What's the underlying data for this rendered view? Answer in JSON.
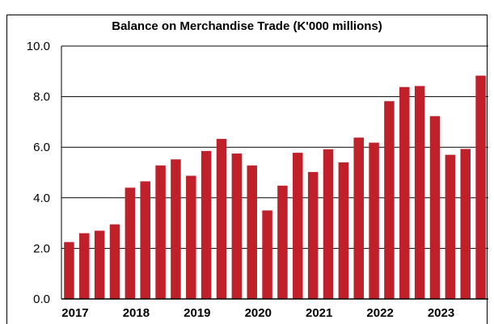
{
  "chart_data": {
    "type": "bar",
    "title": "Balance on Merchandise Trade (K'000 millions)",
    "xlabel": "",
    "ylabel": "",
    "ylim": [
      0,
      10
    ],
    "yticks": [
      "0.0",
      "2.0",
      "4.0",
      "6.0",
      "8.0",
      "10.0"
    ],
    "year_labels": [
      "2017",
      "2018",
      "2019",
      "2020",
      "2021",
      "2022",
      "2023"
    ],
    "bar_color": "#c0202a",
    "grid": true,
    "values": [
      2.25,
      2.6,
      2.7,
      2.95,
      4.4,
      4.65,
      5.28,
      5.52,
      4.87,
      5.85,
      6.33,
      5.75,
      5.28,
      3.5,
      4.48,
      5.78,
      5.02,
      5.92,
      5.4,
      6.38,
      6.18,
      7.82,
      8.38,
      8.42,
      7.23,
      5.7,
      5.93,
      8.83
    ]
  }
}
